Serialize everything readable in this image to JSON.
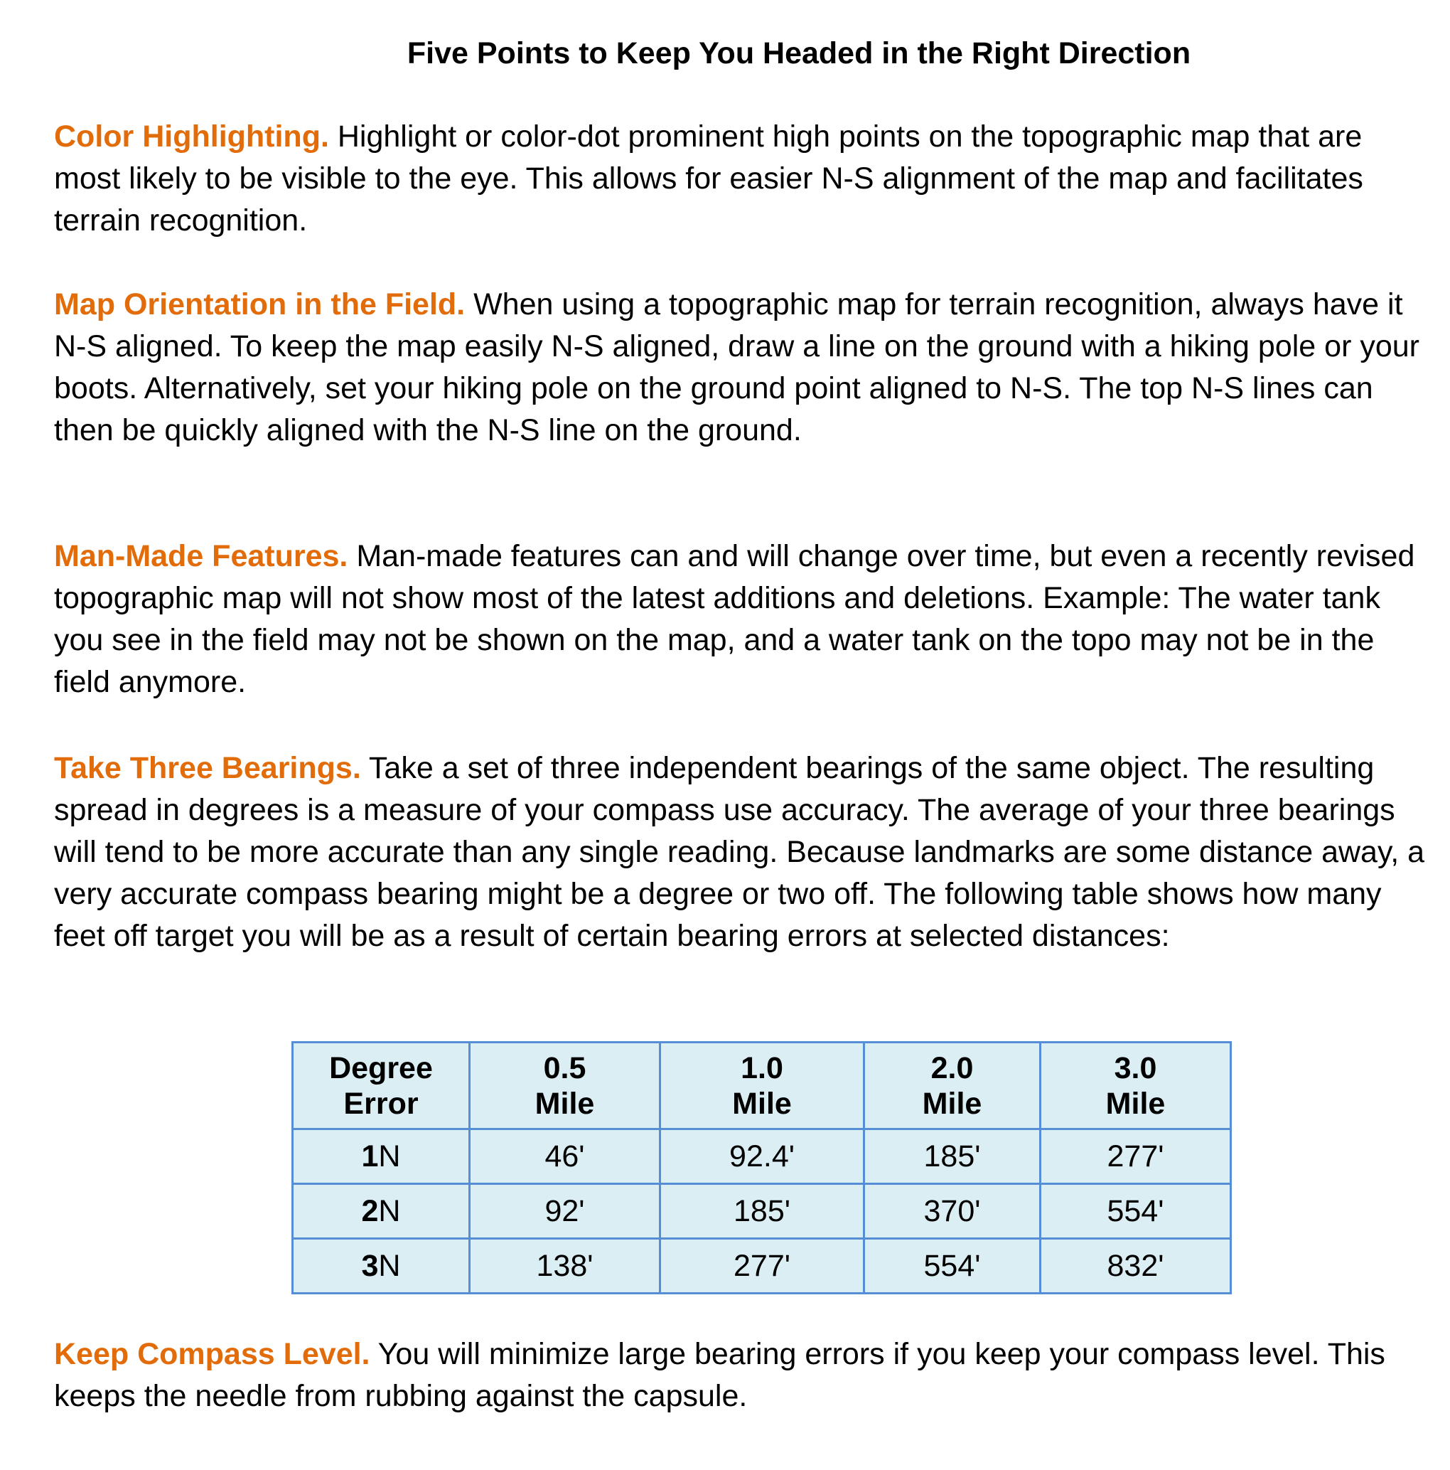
{
  "title": "Five Points to Keep You Headed in the Right Direction",
  "accent_color": "#e36c0a",
  "table_border_color": "#558ed5",
  "table_background_color": "#daeef3",
  "sections": [
    {
      "heading": "Color Highlighting.",
      "text": " Highlight or color-dot prominent high points on the topographic map that are most likely to be visible to the eye. This allows for easier N-S alignment of the map and facilitates terrain recognition."
    },
    {
      "heading": "Map Orientation in the Field.",
      "text": " When using a topographic map for terrain recognition, always have it N-S aligned. To keep the map easily N-S aligned, draw a line on the ground with a hiking pole or your boots. Alternatively, set your hiking pole on the ground point aligned to N-S. The top N-S lines can then be quickly aligned with the N-S line on the ground."
    },
    {
      "heading": "Man-Made Features.",
      "text": " Man-made features can and will change over time, but even a recently revised topographic map will not show most of the latest additions and deletions. Example:  The water tank you see in the field may not be shown on the map, and a water tank on the topo may not be in the field anymore."
    },
    {
      "heading": "Take Three Bearings.",
      "text": " Take a set of three independent bearings of the same object. The resulting spread in degrees is a measure of your compass use accuracy. The average of your three bearings will tend to be more accurate than any single reading. Because landmarks are some distance away, a very accurate compass bearing might be a degree or two off. The following table shows how many feet off target you will be as a result of certain bearing errors at selected distances:"
    },
    {
      "heading": "Keep Compass Level.",
      "text": " You will minimize large bearing errors if you keep your compass level. This keeps the needle from rubbing against the capsule."
    }
  ],
  "table": {
    "headers": [
      {
        "line1": "Degree",
        "line2": "Error"
      },
      {
        "line1": "0.5",
        "line2": "Mile"
      },
      {
        "line1": "1.0",
        "line2": "Mile"
      },
      {
        "line1": "2.0",
        "line2": "Mile"
      },
      {
        "line1": "3.0",
        "line2": "Mile"
      }
    ],
    "rows": [
      {
        "num": "1",
        "unit": "N",
        "cells": [
          "46'",
          "92.4'",
          "185'",
          "277'"
        ]
      },
      {
        "num": "2",
        "unit": "N",
        "cells": [
          "92'",
          "185'",
          "370'",
          "554'"
        ]
      },
      {
        "num": "3",
        "unit": "N",
        "cells": [
          "138'",
          "277'",
          "554'",
          "832'"
        ]
      }
    ]
  }
}
